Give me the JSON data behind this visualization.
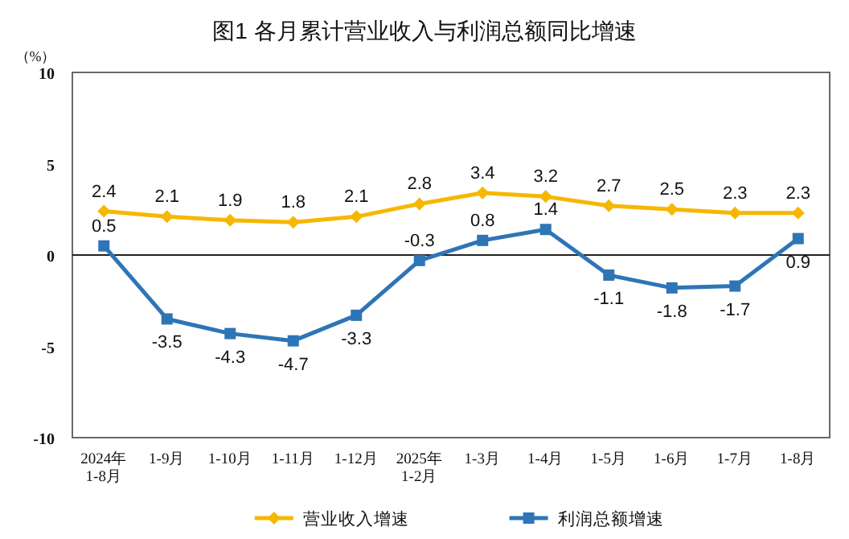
{
  "chart_data": {
    "type": "line",
    "title": "图1  各月累计营业收入与利润总额同比增速",
    "ylabel": "（%）",
    "categories": [
      "2024年\n1-8月",
      "1-9月",
      "1-10月",
      "1-11月",
      "1-12月",
      "2025年\n1-2月",
      "1-3月",
      "1-4月",
      "1-5月",
      "1-6月",
      "1-7月",
      "1-8月"
    ],
    "series": [
      {
        "name": "营业收入增速",
        "color": "#f5b700",
        "marker": "diamond",
        "values": [
          2.4,
          2.1,
          1.9,
          1.8,
          2.1,
          2.8,
          3.4,
          3.2,
          2.7,
          2.5,
          2.3,
          2.3
        ]
      },
      {
        "name": "利润总额增速",
        "color": "#2e75b6",
        "marker": "square",
        "values": [
          0.5,
          -3.5,
          -4.3,
          -4.7,
          -3.3,
          -0.3,
          0.8,
          1.4,
          -1.1,
          -1.8,
          -1.7,
          0.9
        ]
      }
    ],
    "ylim": [
      -10,
      10
    ],
    "yticks": [
      10,
      5,
      0,
      -5,
      -10
    ],
    "data_labels": true,
    "legend": "bottom",
    "ref_lines": [
      {
        "axis": "y",
        "value": 0,
        "color": "#222222"
      }
    ]
  }
}
